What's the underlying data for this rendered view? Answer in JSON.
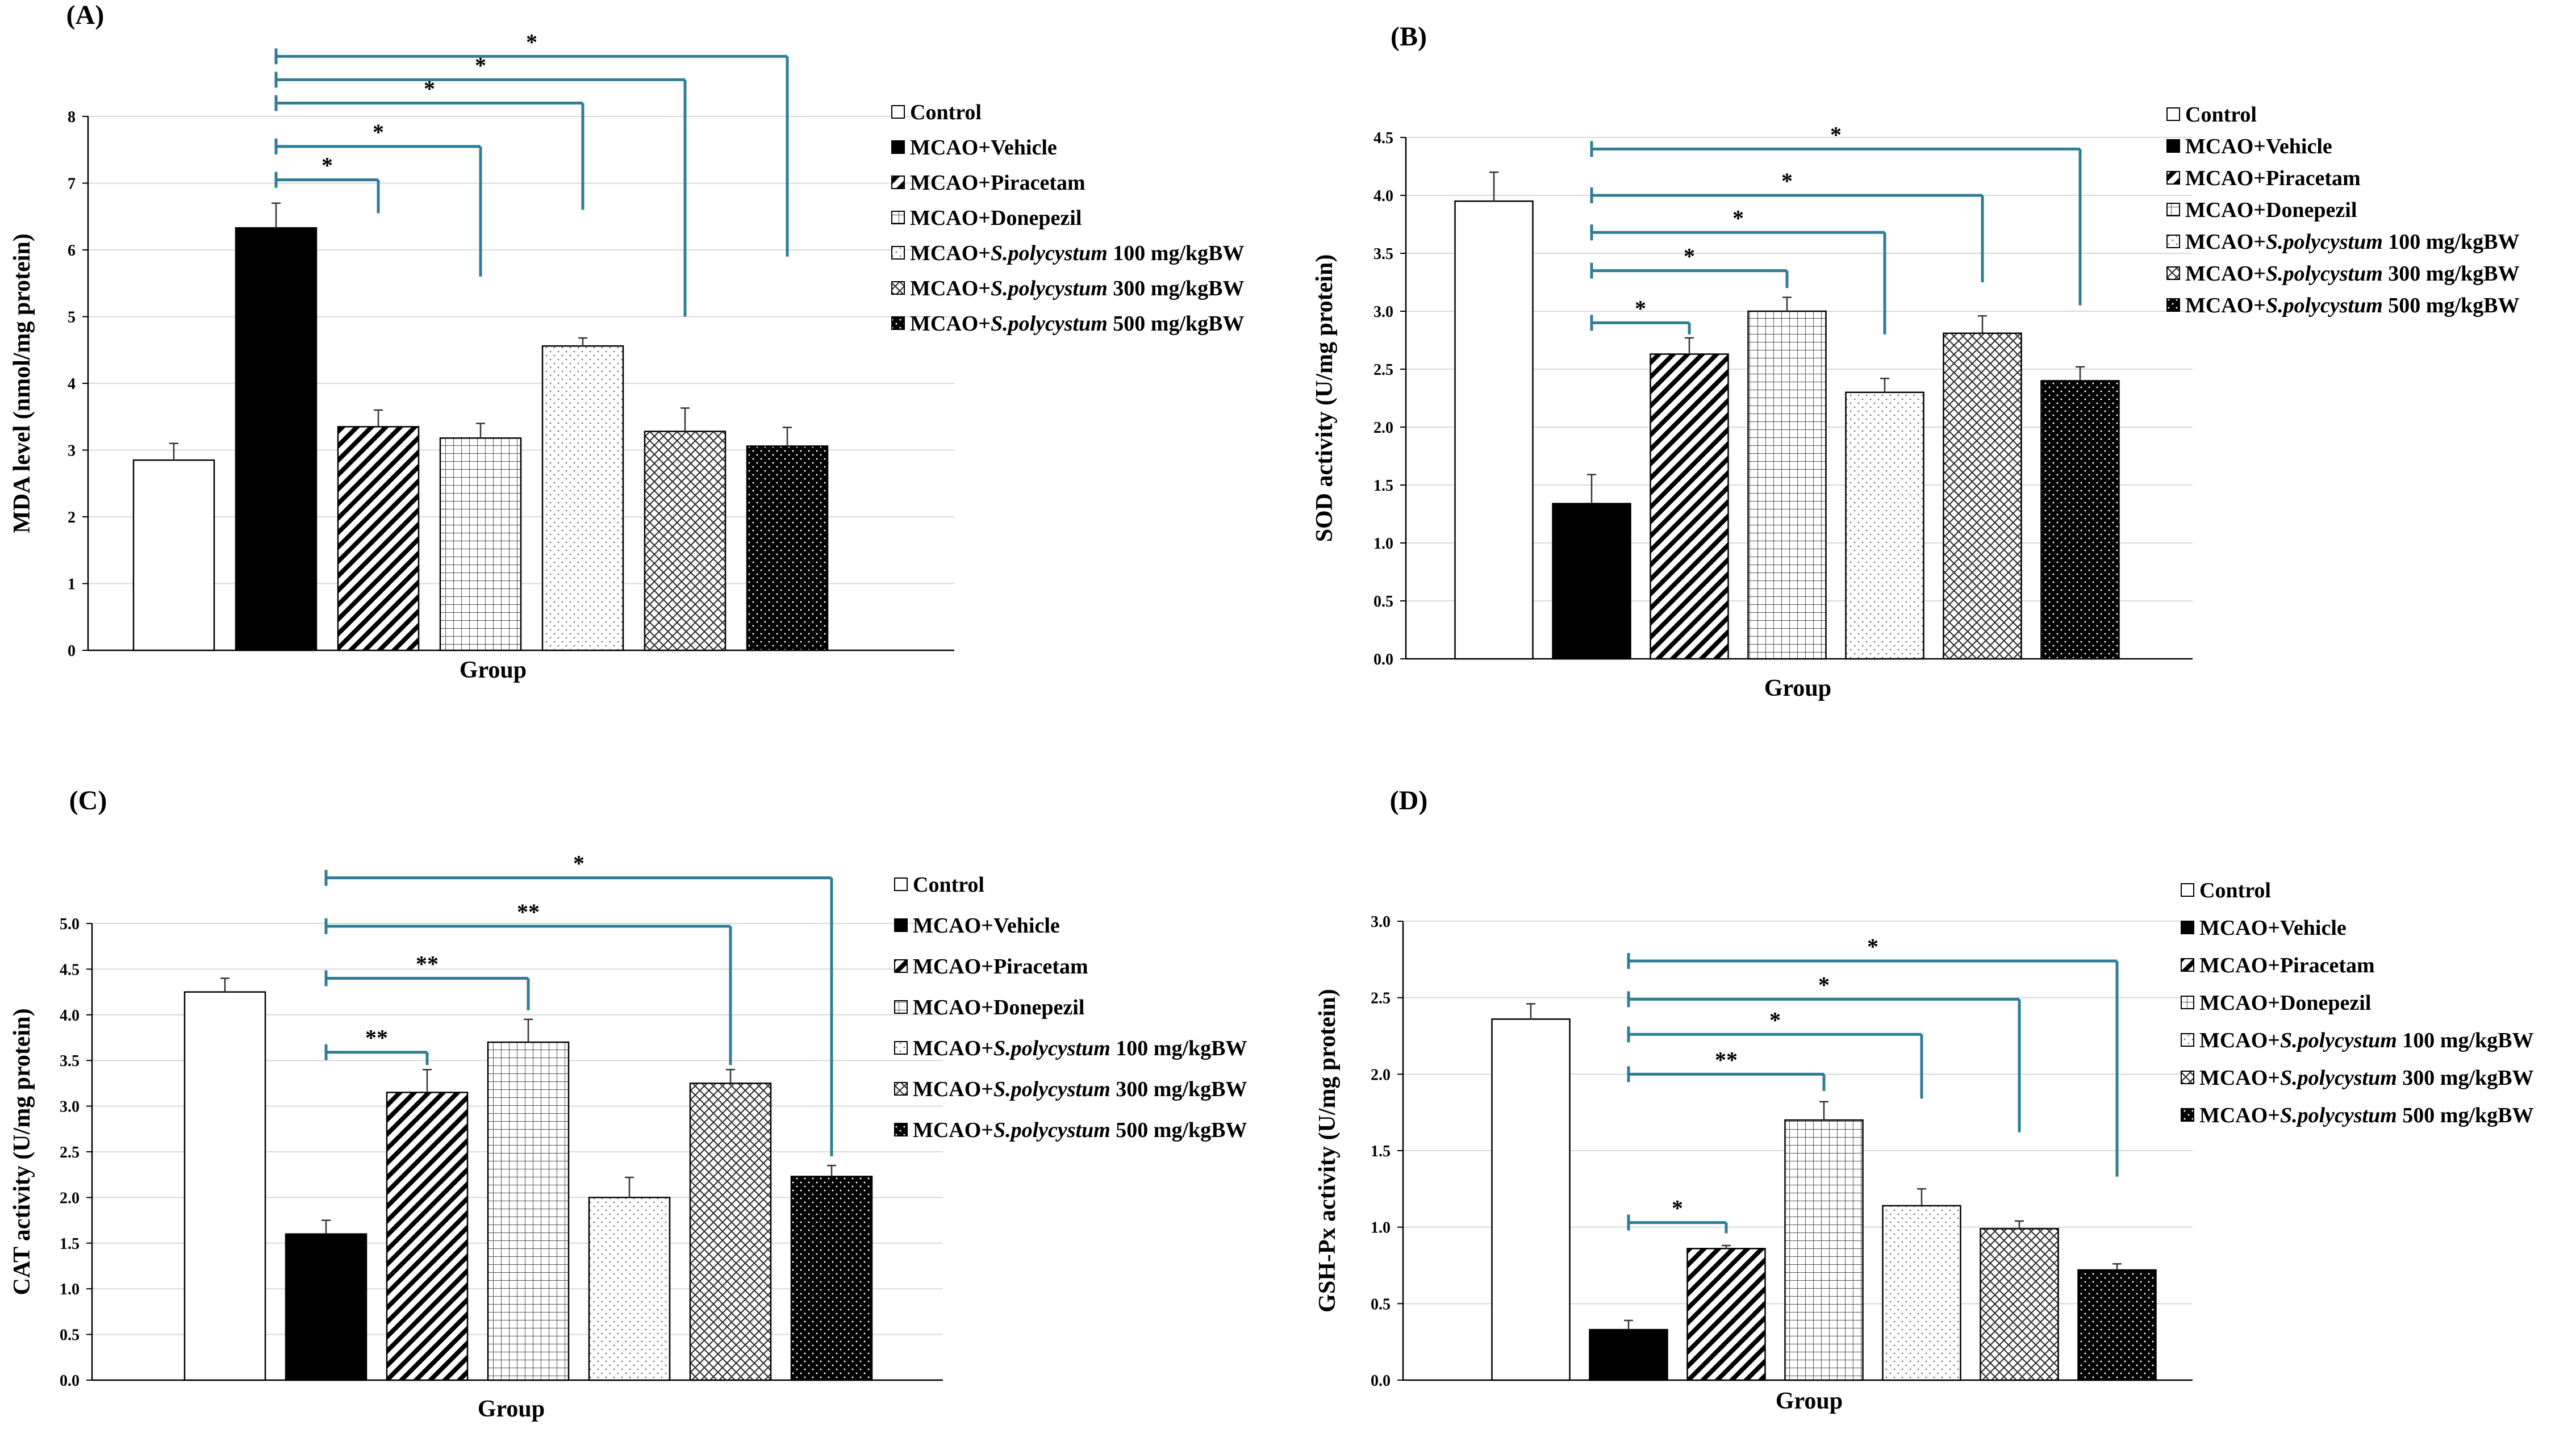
{
  "figure": {
    "colors": {
      "bracket": "#2f7d95",
      "bar_stroke": "#000000",
      "axis": "#000000"
    },
    "legend_entries": [
      {
        "prefix": "Control",
        "italic": "",
        "suffix": "",
        "pattern": "white"
      },
      {
        "prefix": "MCAO+Vehicle",
        "italic": "",
        "suffix": "",
        "pattern": "black"
      },
      {
        "prefix": "MCAO+Piracetam",
        "italic": "",
        "suffix": "",
        "pattern": "diag"
      },
      {
        "prefix": "MCAO+Donepezil",
        "italic": "",
        "suffix": "",
        "pattern": "grid"
      },
      {
        "prefix": "MCAO+",
        "italic": "S.polycystum",
        "suffix": " 100 mg/kgBW",
        "pattern": "dots"
      },
      {
        "prefix": "MCAO+",
        "italic": "S.polycystum",
        "suffix": " 300 mg/kgBW",
        "pattern": "cross"
      },
      {
        "prefix": "MCAO+",
        "italic": "S.polycystum",
        "suffix": " 500 mg/kgBW",
        "pattern": "blackdots"
      }
    ]
  },
  "chart_data": [
    {
      "panel": "(A)",
      "type": "bar",
      "xlabel": "Group",
      "ylabel": "MDA level (nmol/mg protein)",
      "ylim": [
        0,
        8
      ],
      "yticks": [
        0,
        1,
        2,
        3,
        4,
        5,
        6,
        7,
        8
      ],
      "tick_decimals": 0,
      "categories": [
        "Control",
        "MCAO+Vehicle",
        "MCAO+Piracetam",
        "MCAO+Donepezil",
        "MCAO+S.polycystum 100 mg/kgBW",
        "MCAO+S.polycystum 300 mg/kgBW",
        "MCAO+S.polycystum 500 mg/kgBW"
      ],
      "values": [
        2.85,
        6.33,
        3.35,
        3.18,
        4.56,
        3.28,
        3.06
      ],
      "errors": [
        0.25,
        0.37,
        0.25,
        0.22,
        0.12,
        0.35,
        0.28
      ],
      "significance": [
        {
          "from": 1,
          "to": 2,
          "label": "*",
          "y": 7.05,
          "drop_to": 6.55
        },
        {
          "from": 1,
          "to": 3,
          "label": "*",
          "y": 7.55,
          "drop_to": 5.6
        },
        {
          "from": 1,
          "to": 4,
          "label": "*",
          "y": 8.2,
          "drop_to": 6.6
        },
        {
          "from": 1,
          "to": 5,
          "label": "*",
          "y": 8.55,
          "drop_to": 5.0
        },
        {
          "from": 1,
          "to": 6,
          "label": "*",
          "y": 8.9,
          "drop_to": 5.9
        }
      ]
    },
    {
      "panel": "(B)",
      "type": "bar",
      "xlabel": "Group",
      "ylabel": "SOD activity (U/mg protein)",
      "ylim": [
        0,
        4.5
      ],
      "yticks": [
        0,
        0.5,
        1.0,
        1.5,
        2.0,
        2.5,
        3.0,
        3.5,
        4.0,
        4.5
      ],
      "tick_decimals": 1,
      "categories": [
        "Control",
        "MCAO+Vehicle",
        "MCAO+Piracetam",
        "MCAO+Donepezil",
        "MCAO+S.polycystum 100 mg/kgBW",
        "MCAO+S.polycystum 300 mg/kgBW",
        "MCAO+S.polycystum 500 mg/kgBW"
      ],
      "values": [
        3.95,
        1.34,
        2.63,
        3.0,
        2.3,
        2.81,
        2.4
      ],
      "errors": [
        0.25,
        0.25,
        0.14,
        0.12,
        0.12,
        0.15,
        0.12
      ],
      "significance": [
        {
          "from": 1,
          "to": 2,
          "label": "*",
          "y": 2.9,
          "drop_to": 2.8
        },
        {
          "from": 1,
          "to": 3,
          "label": "*",
          "y": 3.35,
          "drop_to": 3.2
        },
        {
          "from": 1,
          "to": 4,
          "label": "*",
          "y": 3.68,
          "drop_to": 2.8
        },
        {
          "from": 1,
          "to": 5,
          "label": "*",
          "y": 4.0,
          "drop_to": 3.25
        },
        {
          "from": 1,
          "to": 6,
          "label": "*",
          "y": 4.4,
          "drop_to": 3.05
        }
      ]
    },
    {
      "panel": "(C)",
      "type": "bar",
      "xlabel": "Group",
      "ylabel": "CAT activity (U/mg protein)",
      "ylim": [
        0,
        5.0
      ],
      "yticks": [
        0,
        0.5,
        1.0,
        1.5,
        2.0,
        2.5,
        3.0,
        3.5,
        4.0,
        4.5,
        5.0
      ],
      "tick_decimals": 1,
      "categories": [
        "Control",
        "MCAO+Vehicle",
        "MCAO+Piracetam",
        "MCAO+Donepezil",
        "MCAO+S.polycystum 100 mg/kgBW",
        "MCAO+S.polycystum 300 mg/kgBW",
        "MCAO+S.polycystum 500 mg/kgBW"
      ],
      "values": [
        4.25,
        1.6,
        3.15,
        3.7,
        2.0,
        3.25,
        2.23
      ],
      "errors": [
        0.15,
        0.15,
        0.25,
        0.25,
        0.22,
        0.15,
        0.12
      ],
      "significance": [
        {
          "from": 1,
          "to": 2,
          "label": "**",
          "y": 3.59,
          "drop_to": 3.45
        },
        {
          "from": 1,
          "to": 3,
          "label": "**",
          "y": 4.4,
          "drop_to": 4.05
        },
        {
          "from": 1,
          "to": 5,
          "label": "**",
          "y": 4.97,
          "drop_to": 3.45
        },
        {
          "from": 1,
          "to": 6,
          "label": "*",
          "y": 5.5,
          "drop_to": 2.45
        }
      ]
    },
    {
      "panel": "(D)",
      "type": "bar",
      "xlabel": "Group",
      "ylabel": "GSH-Px activity (U/mg protein)",
      "ylim": [
        0,
        3.0
      ],
      "yticks": [
        0,
        0.5,
        1.0,
        1.5,
        2.0,
        2.5,
        3.0
      ],
      "tick_decimals": 1,
      "categories": [
        "Control",
        "MCAO+Vehicle",
        "MCAO+Piracetam",
        "MCAO+Donepezil",
        "MCAO+S.polycystum 100 mg/kgBW",
        "MCAO+S.polycystum 300 mg/kgBW",
        "MCAO+S.polycystum 500 mg/kgBW"
      ],
      "values": [
        2.36,
        0.33,
        0.86,
        1.7,
        1.14,
        0.99,
        0.72
      ],
      "errors": [
        0.1,
        0.06,
        0.02,
        0.12,
        0.11,
        0.05,
        0.04
      ],
      "significance": [
        {
          "from": 1,
          "to": 2,
          "label": "*",
          "y": 1.03,
          "drop_to": 0.96
        },
        {
          "from": 1,
          "to": 3,
          "label": "**",
          "y": 2.0,
          "drop_to": 1.89
        },
        {
          "from": 1,
          "to": 4,
          "label": "*",
          "y": 2.26,
          "drop_to": 1.84
        },
        {
          "from": 1,
          "to": 5,
          "label": "*",
          "y": 2.49,
          "drop_to": 1.62
        },
        {
          "from": 1,
          "to": 6,
          "label": "*",
          "y": 2.74,
          "drop_to": 1.33
        }
      ]
    }
  ]
}
